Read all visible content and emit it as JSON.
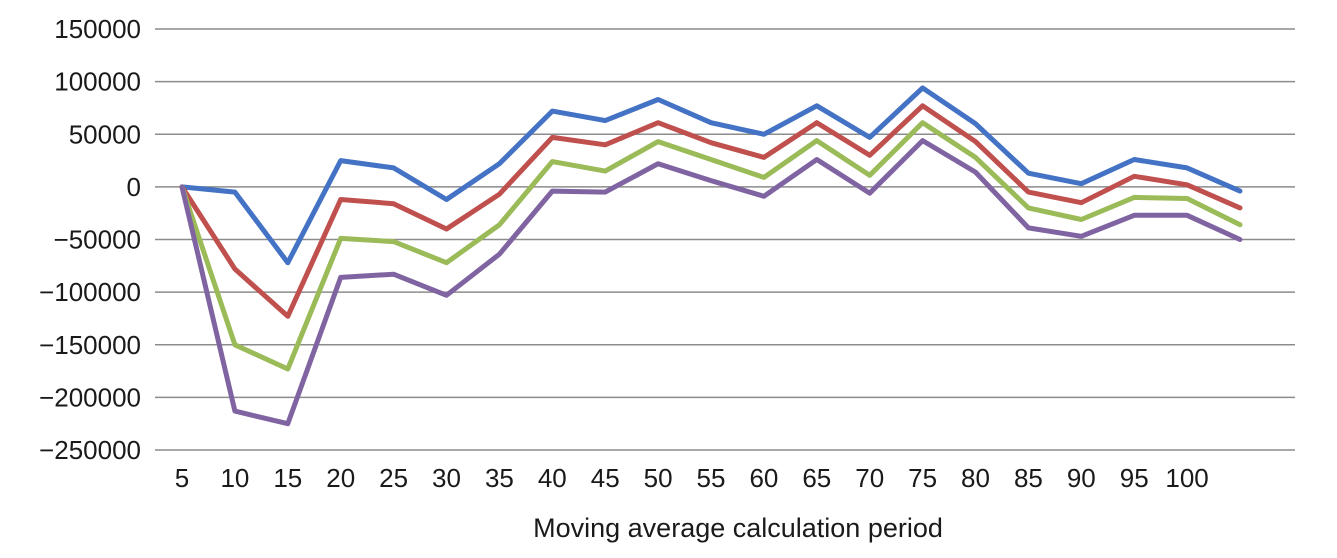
{
  "chart_data": {
    "type": "line",
    "title": "",
    "xlabel": "Moving average calculation period",
    "ylabel": "",
    "ylim": [
      -250000,
      150000
    ],
    "y_ticks": [
      150000,
      100000,
      50000,
      0,
      -50000,
      -100000,
      -150000,
      -200000,
      -250000
    ],
    "y_tick_labels": [
      "150000",
      "100000",
      "50000",
      "0",
      "−50000",
      "−100000",
      "−150000",
      "−200000",
      "−250000"
    ],
    "categories": [
      "5",
      "10",
      "15",
      "20",
      "25",
      "30",
      "35",
      "40",
      "45",
      "50",
      "55",
      "60",
      "65",
      "70",
      "75",
      "80",
      "85",
      "90",
      "95",
      "100",
      ""
    ],
    "grid": true,
    "legend": "none",
    "series": [
      {
        "color": "#4472c4",
        "values": [
          0,
          -5000,
          -72000,
          25000,
          18000,
          -12000,
          22000,
          72000,
          63000,
          83000,
          61000,
          50000,
          77000,
          47000,
          94000,
          60000,
          13000,
          3000,
          26000,
          18000,
          -4000
        ]
      },
      {
        "color": "#c0504d",
        "values": [
          0,
          -78000,
          -123000,
          -12000,
          -16000,
          -40000,
          -7000,
          47000,
          40000,
          61000,
          42000,
          28000,
          61000,
          30000,
          77000,
          43000,
          -5000,
          -15000,
          10000,
          2000,
          -20000
        ]
      },
      {
        "color": "#9bbb59",
        "values": [
          0,
          -150000,
          -173000,
          -49000,
          -52000,
          -72000,
          -36000,
          24000,
          15000,
          43000,
          26000,
          9000,
          44000,
          11000,
          61000,
          28000,
          -20000,
          -31000,
          -10000,
          -11000,
          -36000
        ]
      },
      {
        "color": "#8064a2",
        "values": [
          0,
          -213000,
          -225000,
          -86000,
          -83000,
          -103000,
          -64000,
          -4000,
          -5000,
          22000,
          6000,
          -9000,
          26000,
          -6000,
          44000,
          14000,
          -39000,
          -47000,
          -27000,
          -27000,
          -50000
        ]
      }
    ]
  }
}
